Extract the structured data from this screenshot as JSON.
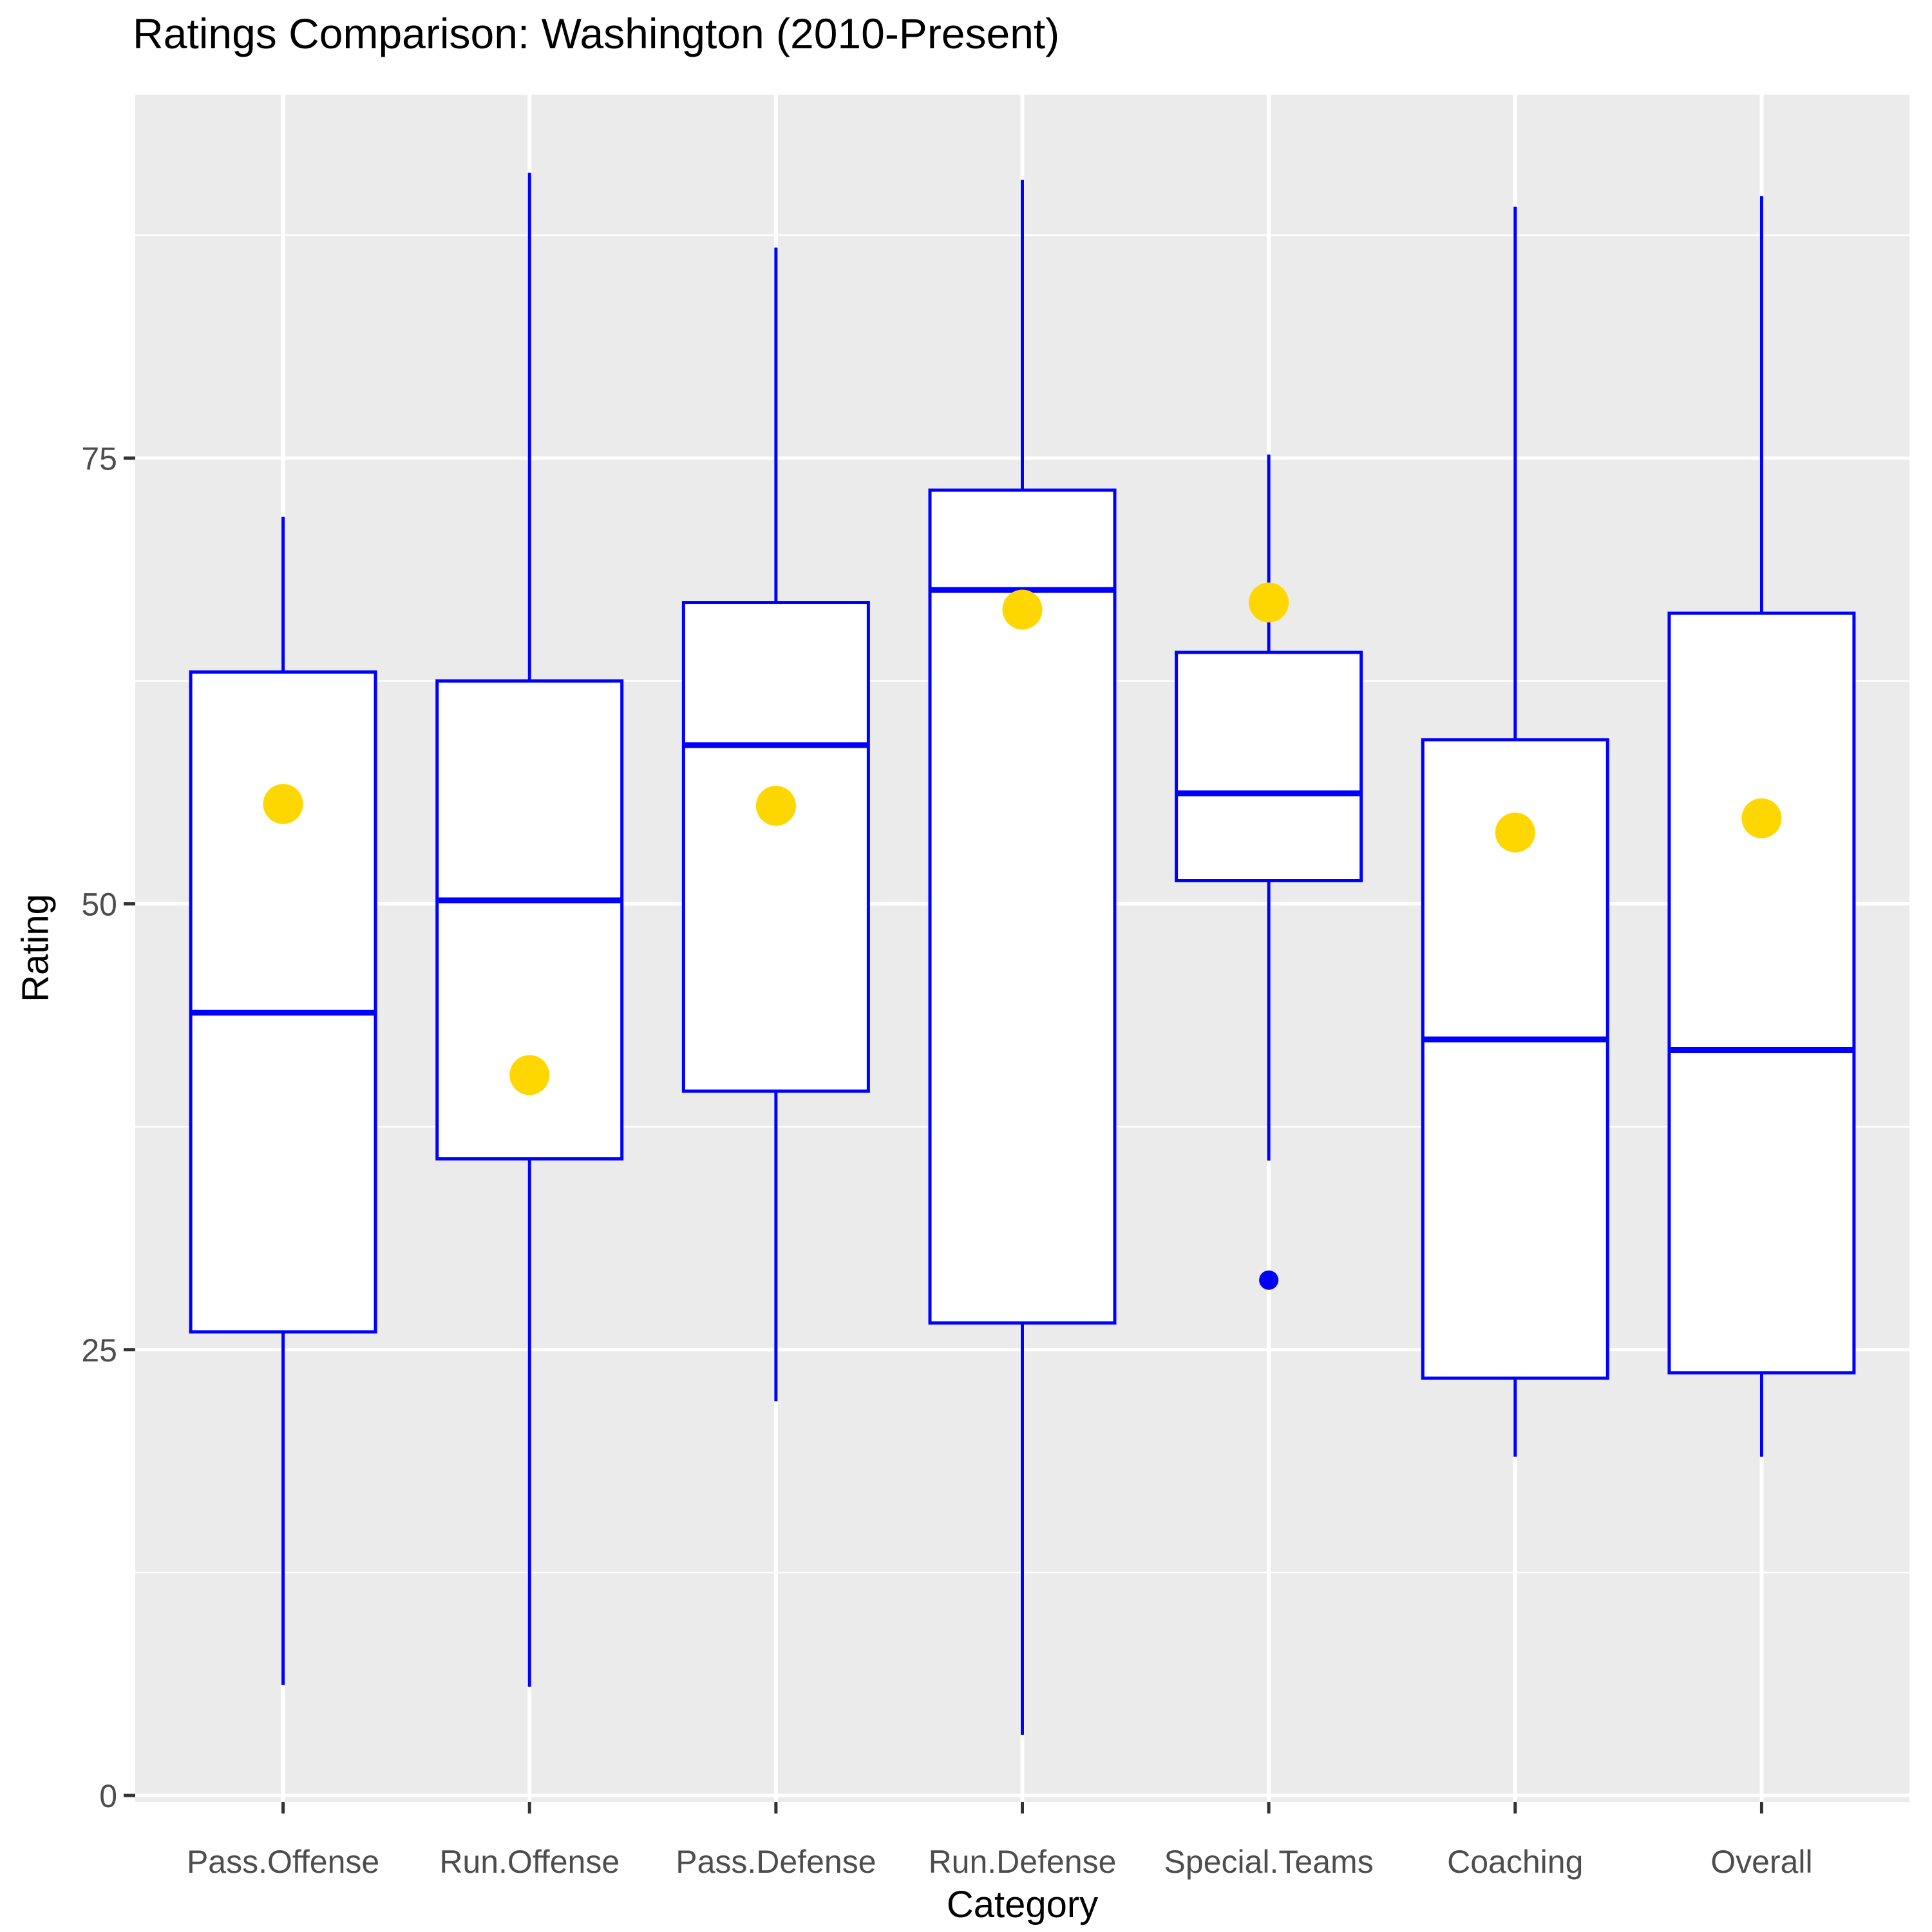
{
  "title": "Ratings Comparison: Washington (2010-Present)",
  "colors": {
    "box_stroke": "#0000FF",
    "box_fill": "#FFFFFF",
    "median": "#0000FF",
    "whisker": "#0000FF",
    "mean_dot": "#FFD700",
    "outlier_dot": "#0000FF",
    "panel_bg": "#EBEBEB",
    "gridline": "#FFFFFF",
    "tick_mark": "#333333",
    "tick_label": "#4D4D4D",
    "axis_title": "#000000"
  },
  "y_axis": {
    "label": "Rating",
    "tick_labels": [
      "0",
      "25",
      "50",
      "75"
    ]
  },
  "x_axis": {
    "label": "Category"
  },
  "chart_data": {
    "type": "boxplot",
    "title": "Ratings Comparison: Washington (2010-Present)",
    "xlabel": "Category",
    "ylabel": "Rating",
    "ylim": [
      -0.4,
      95.5
    ],
    "y_ticks": [
      0,
      25,
      50,
      75
    ],
    "y_minor_ticks": [
      12.5,
      37.5,
      62.5,
      87.5
    ],
    "grid": true,
    "legend_position": "none",
    "categories": [
      "Pass.Offense",
      "Run.Offense",
      "Pass.Defense",
      "Run.Defense",
      "Special.Teams",
      "Coaching",
      "Overall"
    ],
    "series": [
      {
        "category": "Pass.Offense",
        "whisker_low": 6.2,
        "q1": 26.0,
        "median": 43.9,
        "q3": 63.0,
        "whisker_high": 71.7,
        "mean": 55.6,
        "outliers": []
      },
      {
        "category": "Run.Offense",
        "whisker_low": 6.1,
        "q1": 35.7,
        "median": 50.2,
        "q3": 62.5,
        "whisker_high": 91.0,
        "mean": 40.4,
        "outliers": []
      },
      {
        "category": "Pass.Defense",
        "whisker_low": 22.1,
        "q1": 39.5,
        "median": 58.9,
        "q3": 66.9,
        "whisker_high": 86.8,
        "mean": 55.5,
        "outliers": []
      },
      {
        "category": "Run.Defense",
        "whisker_low": 3.4,
        "q1": 26.5,
        "median": 67.6,
        "q3": 73.2,
        "whisker_high": 90.6,
        "mean": 66.5,
        "outliers": []
      },
      {
        "category": "Special.Teams",
        "whisker_low": 35.6,
        "q1": 51.3,
        "median": 56.2,
        "q3": 64.1,
        "whisker_high": 75.2,
        "mean": 66.9,
        "outliers": [
          28.9
        ]
      },
      {
        "category": "Coaching",
        "whisker_low": 19.0,
        "q1": 23.4,
        "median": 42.4,
        "q3": 59.2,
        "whisker_high": 89.1,
        "mean": 54.0,
        "outliers": []
      },
      {
        "category": "Overall",
        "whisker_low": 19.0,
        "q1": 23.7,
        "median": 41.8,
        "q3": 66.3,
        "whisker_high": 89.7,
        "mean": 54.8,
        "outliers": []
      }
    ]
  }
}
